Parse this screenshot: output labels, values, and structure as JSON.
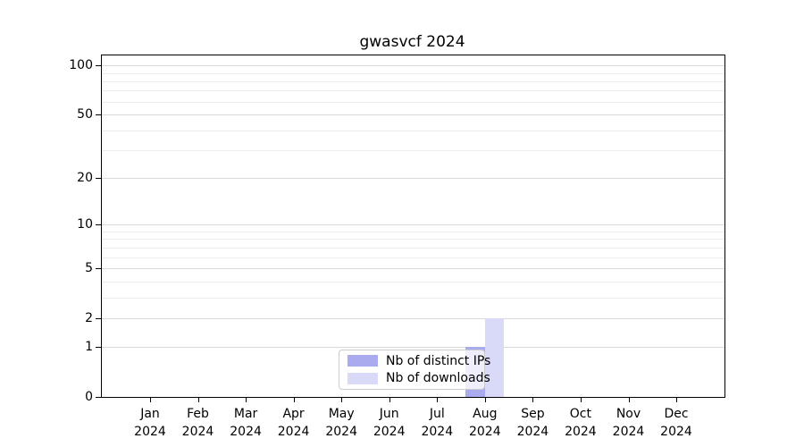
{
  "chart_data": {
    "type": "bar",
    "title": "gwasvcf 2024",
    "categories": [
      "Jan",
      "Feb",
      "Mar",
      "Apr",
      "May",
      "Jun",
      "Jul",
      "Aug",
      "Sep",
      "Oct",
      "Nov",
      "Dec"
    ],
    "category_year": "2024",
    "series": [
      {
        "name": "Nb of distinct IPs",
        "color": "#aaaaee",
        "values": [
          0,
          0,
          0,
          0,
          0,
          0,
          0,
          1,
          0,
          0,
          0,
          0
        ]
      },
      {
        "name": "Nb of downloads",
        "color": "#d9d9f8",
        "values": [
          0,
          0,
          0,
          0,
          0,
          0,
          0,
          2,
          0,
          0,
          0,
          0
        ]
      }
    ],
    "yscale": "log1p",
    "ylim": [
      0,
      115
    ],
    "y_ticks": [
      0,
      1,
      2,
      5,
      10,
      20,
      50,
      100
    ],
    "y_tick_labels": [
      "0",
      "1",
      "2",
      "5",
      "10",
      "20",
      "50",
      "100"
    ],
    "y_minor_ticks": [
      3,
      4,
      6,
      7,
      8,
      9,
      30,
      40,
      60,
      70,
      80,
      90
    ],
    "grid": "horizontal",
    "legend_position": "lower center"
  },
  "colors": {
    "background": "#ffffff",
    "spine": "#000000",
    "grid_major": "#d9d9d9",
    "grid_minor": "#ededed",
    "tick": "#000000",
    "text": "#000000",
    "legend_border": "#cccccc"
  }
}
